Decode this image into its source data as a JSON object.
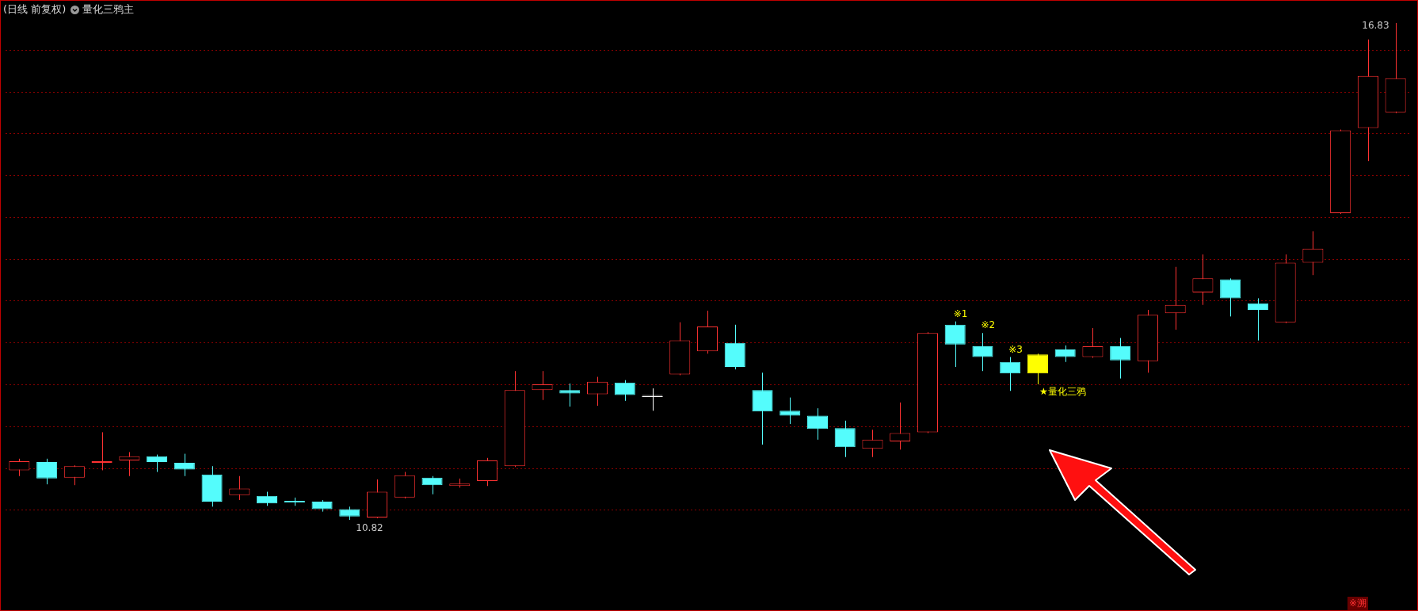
{
  "chart_data": {
    "type": "candlestick",
    "title": "(日线 前复权)",
    "subtitle": "量化三鸦主",
    "categories": [
      null,
      null,
      null,
      null,
      null,
      null,
      null,
      null,
      null,
      null,
      null,
      null,
      null,
      null,
      null,
      null,
      null,
      null,
      null,
      null,
      null,
      null,
      null,
      null,
      null,
      null,
      null,
      null,
      null,
      null,
      null,
      null,
      null,
      null,
      null,
      null,
      null,
      null,
      null,
      null,
      null,
      null,
      null,
      null,
      null,
      null,
      null,
      null,
      null,
      null,
      null
    ],
    "ohlc": [
      [
        11.42,
        11.56,
        11.35,
        11.53
      ],
      [
        11.52,
        11.56,
        11.25,
        11.32
      ],
      [
        11.33,
        11.48,
        11.24,
        11.47
      ],
      [
        11.51,
        11.88,
        11.42,
        11.53
      ],
      [
        11.54,
        11.64,
        11.35,
        11.59
      ],
      [
        11.59,
        11.61,
        11.4,
        11.52
      ],
      [
        11.51,
        11.62,
        11.35,
        11.43
      ],
      [
        11.37,
        11.47,
        10.98,
        11.04
      ],
      [
        11.12,
        11.35,
        11.06,
        11.2
      ],
      [
        11.11,
        11.16,
        10.99,
        11.02
      ],
      [
        11.05,
        11.09,
        10.99,
        11.03
      ],
      [
        11.04,
        11.06,
        10.92,
        10.95
      ],
      [
        10.95,
        10.98,
        10.82,
        10.86
      ],
      [
        10.85,
        11.31,
        10.84,
        11.16
      ],
      [
        11.09,
        11.4,
        11.08,
        11.36
      ],
      [
        11.33,
        11.35,
        11.13,
        11.24
      ],
      [
        11.23,
        11.32,
        11.21,
        11.26
      ],
      [
        11.29,
        11.57,
        11.23,
        11.54
      ],
      [
        11.47,
        12.62,
        11.46,
        12.39
      ],
      [
        12.39,
        12.62,
        12.27,
        12.46
      ],
      [
        12.39,
        12.47,
        12.19,
        12.35
      ],
      [
        12.34,
        12.55,
        12.2,
        12.49
      ],
      [
        12.48,
        12.51,
        12.26,
        12.33
      ],
      [
        12.32,
        12.41,
        12.14,
        12.32
      ],
      [
        12.58,
        13.21,
        12.57,
        12.99
      ],
      [
        12.86,
        13.35,
        12.83,
        13.16
      ],
      [
        12.96,
        13.18,
        12.64,
        12.67
      ],
      [
        12.39,
        12.6,
        11.73,
        12.13
      ],
      [
        12.14,
        12.3,
        11.98,
        12.08
      ],
      [
        12.08,
        12.17,
        11.79,
        11.92
      ],
      [
        11.93,
        12.02,
        11.58,
        11.7
      ],
      [
        11.68,
        11.91,
        11.58,
        11.79
      ],
      [
        11.77,
        12.24,
        11.67,
        11.87
      ],
      [
        11.88,
        13.09,
        11.87,
        13.08
      ],
      [
        13.18,
        13.22,
        12.67,
        12.94
      ],
      [
        12.92,
        13.08,
        12.62,
        12.79
      ],
      [
        12.73,
        12.79,
        12.38,
        12.59
      ],
      [
        12.82,
        12.83,
        12.46,
        12.59
      ],
      [
        12.88,
        12.93,
        12.73,
        12.79
      ],
      [
        12.79,
        13.14,
        12.78,
        12.92
      ],
      [
        12.92,
        13.02,
        12.53,
        12.75
      ],
      [
        12.74,
        13.36,
        12.6,
        13.3
      ],
      [
        13.32,
        13.88,
        13.12,
        13.42
      ],
      [
        13.57,
        14.03,
        13.42,
        13.74
      ],
      [
        13.73,
        13.74,
        13.28,
        13.5
      ],
      [
        13.44,
        13.5,
        12.99,
        13.36
      ],
      [
        13.21,
        14.03,
        13.2,
        13.93
      ],
      [
        13.93,
        14.31,
        13.78,
        14.1
      ],
      [
        14.53,
        15.54,
        14.52,
        15.53
      ],
      [
        15.56,
        16.63,
        15.16,
        16.19
      ],
      [
        15.75,
        16.83,
        15.74,
        16.16
      ]
    ],
    "colors": [
      "#ff3232",
      "#54fcfc",
      "#ff3232",
      "#ff3232",
      "#ff3232",
      "#54fcfc",
      "#54fcfc",
      "#54fcfc",
      "#ff3232",
      "#54fcfc",
      "#54fcfc",
      "#54fcfc",
      "#54fcfc",
      "#ff3232",
      "#ff3232",
      "#54fcfc",
      "#ff3232",
      "#ff3232",
      "#ff3232",
      "#ff3232",
      "#54fcfc",
      "#ff3232",
      "#54fcfc",
      "#ffffff",
      "#ff3232",
      "#ff3232",
      "#54fcfc",
      "#54fcfc",
      "#54fcfc",
      "#54fcfc",
      "#54fcfc",
      "#ff3232",
      "#ff3232",
      "#ff3232",
      "#54fcfc",
      "#54fcfc",
      "#54fcfc",
      "#ffff00",
      "#54fcfc",
      "#ff3232",
      "#54fcfc",
      "#ff3232",
      "#ff3232",
      "#ff3232",
      "#54fcfc",
      "#54fcfc",
      "#ff3232",
      "#ff3232",
      "#ff3232",
      "#ff3232",
      "#ff3232"
    ],
    "yticks": [
      {
        "value": 10.94,
        "label": null
      },
      {
        "value": 11.44,
        "label": null
      },
      {
        "value": 11.95,
        "label": null
      },
      {
        "value": 12.45,
        "label": null
      },
      {
        "value": 12.96,
        "label": null
      },
      {
        "value": 13.47,
        "label": null
      },
      {
        "value": 13.97,
        "label": null
      },
      {
        "value": 14.48,
        "label": null
      },
      {
        "value": 14.98,
        "label": null
      },
      {
        "value": 15.49,
        "label": null
      },
      {
        "value": 15.99,
        "label": null
      },
      {
        "value": 16.5,
        "label": null
      }
    ],
    "grid": "y",
    "legend": false,
    "annotations": [
      "16.83",
      "10.82",
      "※1",
      "※2",
      "※3",
      "★量化三鸦",
      "※溯"
    ]
  }
}
